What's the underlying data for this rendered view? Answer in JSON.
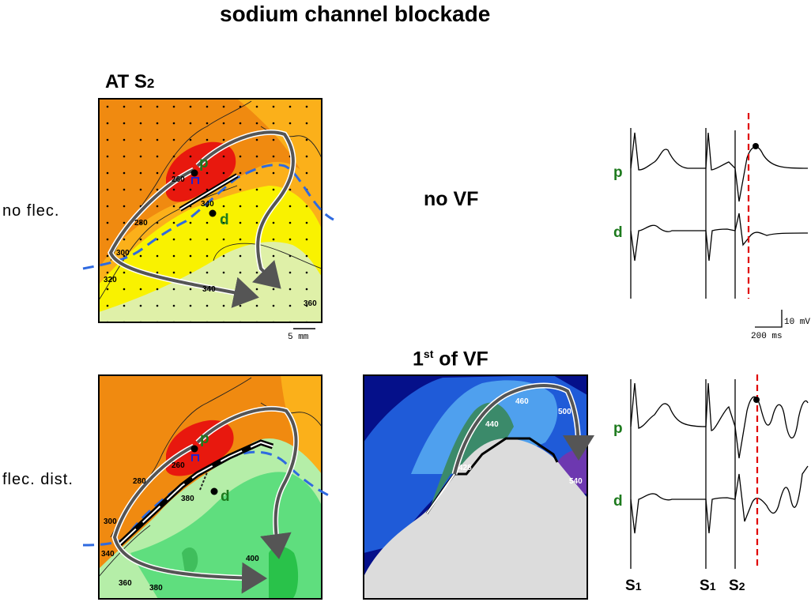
{
  "title": "sodium channel blockade",
  "at_s2": {
    "main": "AT S",
    "sub": "2"
  },
  "rows": {
    "top": "no flec.",
    "bottom": "flec. dist."
  },
  "outcomes": {
    "top": "no VF",
    "bottom_pre": "1",
    "bottom_sup": "st",
    "bottom_post": " of VF"
  },
  "scale": {
    "map": "5 mm",
    "volt": "10 mV",
    "time": "200 ms"
  },
  "trace_labels": {
    "p": "p",
    "d": "d"
  },
  "stim_labels": {
    "s": "S",
    "s1_sub": "1",
    "s2_sub": "2"
  },
  "map_top": {
    "site_p": "p",
    "site_d": "d",
    "isochrones": [
      "260",
      "280",
      "300",
      "320",
      "340",
      "340",
      "360"
    ]
  },
  "map_bottom": {
    "site_p": "p",
    "site_d": "d",
    "isochrones": [
      "260",
      "280",
      "300",
      "340",
      "360",
      "380",
      "380",
      "400"
    ]
  },
  "map_vf": {
    "isochrones": [
      "428",
      "440",
      "460",
      "500",
      "540"
    ]
  },
  "colors": {
    "red": "#e8180e",
    "orange": "#f08a10",
    "amber": "#fbb01a",
    "yellow": "#f9f200",
    "pale_yellow": "#dff0a8",
    "green": "#5fde7e",
    "pale_green": "#b5eea8",
    "dark_green": "#29c24a",
    "blue_dark": "#05108a",
    "blue_mid": "#1f5bd8",
    "blue_light": "#4fa0ee",
    "vf_green": "#3b8a6a",
    "grey": "#dcdcdc",
    "purple": "#6d38b0",
    "label_green": "#1d7a1d",
    "stim_red": "#e00000",
    "boundary_blue": "#2f6ae0"
  }
}
